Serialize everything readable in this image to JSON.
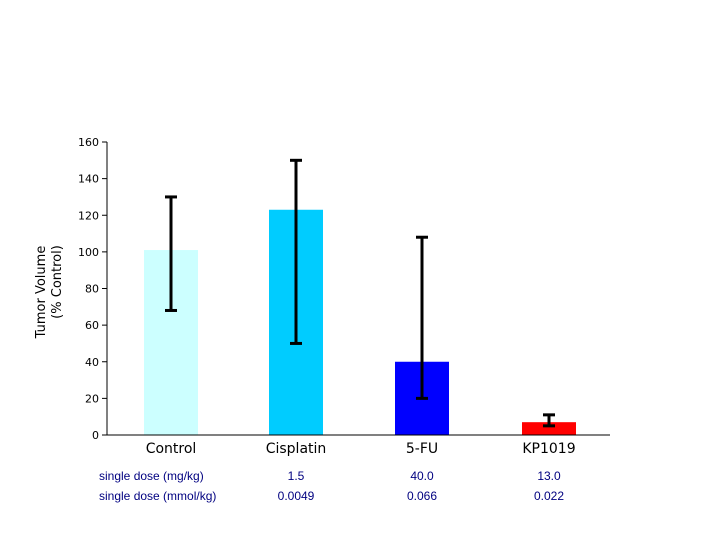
{
  "chart_data": {
    "type": "bar",
    "ylabel_line1": "Tumor Volume",
    "ylabel_line2": "(% Control)",
    "ylim": [
      0,
      160
    ],
    "yticks": [
      0,
      20,
      40,
      60,
      80,
      100,
      120,
      140,
      160
    ],
    "categories": [
      "Control",
      "Cisplatin",
      "5-FU",
      "KP1019"
    ],
    "values": [
      101,
      123,
      40,
      7
    ],
    "error_low": [
      68,
      50,
      20,
      5
    ],
    "error_high": [
      130,
      150,
      108,
      11
    ],
    "colors": [
      "#ccffff",
      "#00ccff",
      "#0000ff",
      "#ff0000"
    ],
    "grid": false
  },
  "dose_table": {
    "rows": [
      {
        "label": "single dose (mg/kg)",
        "values": [
          "1.5",
          "40.0",
          "13.0"
        ]
      },
      {
        "label": "single dose (mmol/kg)",
        "values": [
          "0.0049",
          "0.066",
          "0.022"
        ]
      }
    ]
  }
}
